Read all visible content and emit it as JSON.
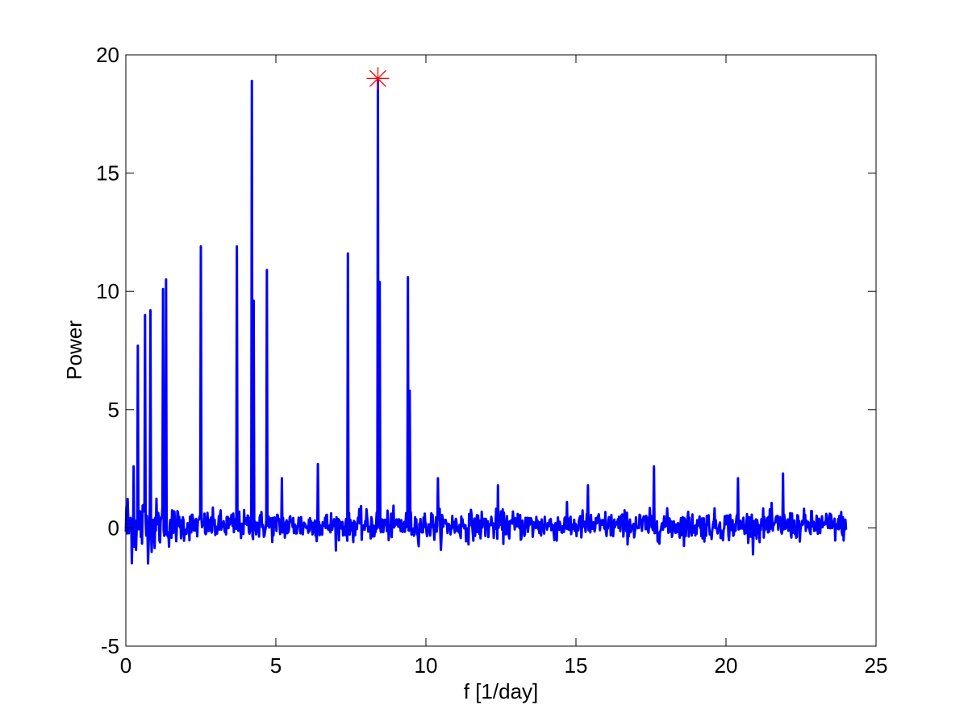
{
  "chart_data": {
    "type": "line",
    "title": "",
    "xlabel": "f [1/day]",
    "ylabel": "Power",
    "xlim": [
      0,
      25
    ],
    "ylim": [
      -5,
      20
    ],
    "grid": false,
    "legend": "none",
    "x_ticks": [
      0,
      5,
      10,
      15,
      20,
      25
    ],
    "y_ticks": [
      -5,
      0,
      5,
      10,
      15,
      20
    ],
    "x_tick_labels": [
      "0",
      "5",
      "10",
      "15",
      "20",
      "25"
    ],
    "y_tick_labels": [
      "-5",
      "0",
      "5",
      "10",
      "15",
      "20"
    ],
    "line_color": "#0000ff",
    "marker_color": "#ff0000",
    "data_range": [
      0,
      24
    ],
    "noise": {
      "baseline": 0.1,
      "amplitude_low_f": 1.5,
      "amplitude_high_f": 0.55,
      "transition_f": 2.0,
      "step": 0.02
    },
    "series": [
      {
        "peaks": [
          {
            "x": 0.25,
            "y": 2.6
          },
          {
            "x": 0.4,
            "y": 7.7
          },
          {
            "x": 0.65,
            "y": 9.0
          },
          {
            "x": 0.82,
            "y": 9.2
          },
          {
            "x": 1.25,
            "y": 10.1
          },
          {
            "x": 1.35,
            "y": 10.5
          },
          {
            "x": 2.5,
            "y": 11.9
          },
          {
            "x": 3.7,
            "y": 11.9
          },
          {
            "x": 4.2,
            "y": 18.9
          },
          {
            "x": 4.25,
            "y": 9.6
          },
          {
            "x": 4.7,
            "y": 10.9
          },
          {
            "x": 5.2,
            "y": 2.1
          },
          {
            "x": 6.4,
            "y": 2.7
          },
          {
            "x": 7.4,
            "y": 11.6
          },
          {
            "x": 8.4,
            "y": 19.0
          },
          {
            "x": 8.45,
            "y": 10.4
          },
          {
            "x": 9.4,
            "y": 10.6
          },
          {
            "x": 9.45,
            "y": 5.8
          },
          {
            "x": 10.4,
            "y": 2.1
          },
          {
            "x": 12.4,
            "y": 1.8
          },
          {
            "x": 15.4,
            "y": 1.8
          },
          {
            "x": 17.6,
            "y": 2.6
          },
          {
            "x": 20.4,
            "y": 2.1
          },
          {
            "x": 21.9,
            "y": 2.3
          }
        ]
      }
    ],
    "highlight": {
      "x": 8.4,
      "y": 19.0
    }
  }
}
